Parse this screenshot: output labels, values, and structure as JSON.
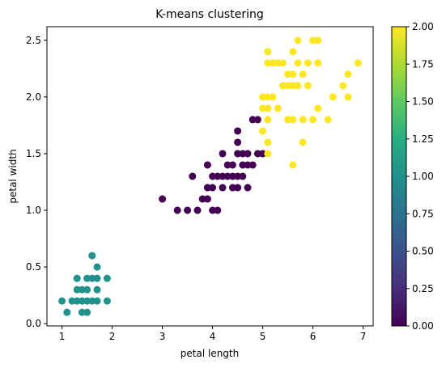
{
  "chart_data": {
    "type": "scatter",
    "title": "K-means clustering",
    "xlabel": "petal length",
    "ylabel": "petal width",
    "xlim": [
      0.7,
      7.2
    ],
    "ylim": [
      -0.02,
      2.62
    ],
    "xticks": [
      "1",
      "2",
      "3",
      "4",
      "5",
      "6",
      "7"
    ],
    "yticks": [
      "0.0",
      "0.5",
      "1.0",
      "1.5",
      "2.0",
      "2.5"
    ],
    "colorbar": {
      "colormap": "viridis",
      "range": [
        0.0,
        2.0
      ],
      "ticks": [
        "0.00",
        "0.25",
        "0.50",
        "0.75",
        "1.00",
        "1.25",
        "1.50",
        "1.75",
        "2.00"
      ]
    },
    "cluster_colors": [
      "#440154",
      "#21918c",
      "#fde725"
    ],
    "grid": false,
    "points": [
      {
        "x": 1.0,
        "y": 0.2,
        "c": 1
      },
      {
        "x": 1.1,
        "y": 0.1,
        "c": 1
      },
      {
        "x": 1.2,
        "y": 0.2,
        "c": 1
      },
      {
        "x": 1.3,
        "y": 0.2,
        "c": 1
      },
      {
        "x": 1.3,
        "y": 0.3,
        "c": 1
      },
      {
        "x": 1.3,
        "y": 0.4,
        "c": 1
      },
      {
        "x": 1.4,
        "y": 0.1,
        "c": 1
      },
      {
        "x": 1.4,
        "y": 0.2,
        "c": 1
      },
      {
        "x": 1.4,
        "y": 0.3,
        "c": 1
      },
      {
        "x": 1.5,
        "y": 0.1,
        "c": 1
      },
      {
        "x": 1.5,
        "y": 0.2,
        "c": 1
      },
      {
        "x": 1.5,
        "y": 0.3,
        "c": 1
      },
      {
        "x": 1.5,
        "y": 0.4,
        "c": 1
      },
      {
        "x": 1.6,
        "y": 0.2,
        "c": 1
      },
      {
        "x": 1.6,
        "y": 0.4,
        "c": 1
      },
      {
        "x": 1.6,
        "y": 0.6,
        "c": 1
      },
      {
        "x": 1.7,
        "y": 0.2,
        "c": 1
      },
      {
        "x": 1.7,
        "y": 0.3,
        "c": 1
      },
      {
        "x": 1.7,
        "y": 0.4,
        "c": 1
      },
      {
        "x": 1.7,
        "y": 0.5,
        "c": 1
      },
      {
        "x": 1.9,
        "y": 0.2,
        "c": 1
      },
      {
        "x": 1.9,
        "y": 0.4,
        "c": 1
      },
      {
        "x": 3.0,
        "y": 1.1,
        "c": 0
      },
      {
        "x": 3.3,
        "y": 1.0,
        "c": 0
      },
      {
        "x": 3.5,
        "y": 1.0,
        "c": 0
      },
      {
        "x": 3.6,
        "y": 1.3,
        "c": 0
      },
      {
        "x": 3.7,
        "y": 1.0,
        "c": 0
      },
      {
        "x": 3.8,
        "y": 1.1,
        "c": 0
      },
      {
        "x": 3.9,
        "y": 1.1,
        "c": 0
      },
      {
        "x": 3.9,
        "y": 1.2,
        "c": 0
      },
      {
        "x": 3.9,
        "y": 1.4,
        "c": 0
      },
      {
        "x": 4.0,
        "y": 1.0,
        "c": 0
      },
      {
        "x": 4.0,
        "y": 1.2,
        "c": 0
      },
      {
        "x": 4.0,
        "y": 1.3,
        "c": 0
      },
      {
        "x": 4.1,
        "y": 1.0,
        "c": 0
      },
      {
        "x": 4.1,
        "y": 1.3,
        "c": 0
      },
      {
        "x": 4.2,
        "y": 1.2,
        "c": 0
      },
      {
        "x": 4.2,
        "y": 1.3,
        "c": 0
      },
      {
        "x": 4.2,
        "y": 1.5,
        "c": 0
      },
      {
        "x": 4.3,
        "y": 1.3,
        "c": 0
      },
      {
        "x": 4.4,
        "y": 1.2,
        "c": 0
      },
      {
        "x": 4.4,
        "y": 1.3,
        "c": 0
      },
      {
        "x": 4.4,
        "y": 1.4,
        "c": 0
      },
      {
        "x": 4.5,
        "y": 1.3,
        "c": 0
      },
      {
        "x": 4.5,
        "y": 1.5,
        "c": 0
      },
      {
        "x": 4.5,
        "y": 1.6,
        "c": 0
      },
      {
        "x": 4.5,
        "y": 1.7,
        "c": 0
      },
      {
        "x": 4.6,
        "y": 1.3,
        "c": 0
      },
      {
        "x": 4.6,
        "y": 1.4,
        "c": 0
      },
      {
        "x": 4.6,
        "y": 1.5,
        "c": 0
      },
      {
        "x": 4.7,
        "y": 1.2,
        "c": 0
      },
      {
        "x": 4.7,
        "y": 1.4,
        "c": 0
      },
      {
        "x": 4.7,
        "y": 1.5,
        "c": 0
      },
      {
        "x": 4.8,
        "y": 1.4,
        "c": 0
      },
      {
        "x": 4.8,
        "y": 1.8,
        "c": 0
      },
      {
        "x": 4.9,
        "y": 1.5,
        "c": 0
      },
      {
        "x": 4.9,
        "y": 1.8,
        "c": 0
      },
      {
        "x": 5.0,
        "y": 1.5,
        "c": 0
      },
      {
        "x": 4.5,
        "y": 1.2,
        "c": 0
      },
      {
        "x": 4.3,
        "y": 1.4,
        "c": 0
      },
      {
        "x": 5.0,
        "y": 1.7,
        "c": 2
      },
      {
        "x": 5.0,
        "y": 2.0,
        "c": 2
      },
      {
        "x": 5.0,
        "y": 1.9,
        "c": 2
      },
      {
        "x": 5.1,
        "y": 1.5,
        "c": 2
      },
      {
        "x": 5.1,
        "y": 1.6,
        "c": 2
      },
      {
        "x": 5.1,
        "y": 1.8,
        "c": 2
      },
      {
        "x": 5.1,
        "y": 1.9,
        "c": 2
      },
      {
        "x": 5.1,
        "y": 2.0,
        "c": 2
      },
      {
        "x": 5.1,
        "y": 2.3,
        "c": 2
      },
      {
        "x": 5.1,
        "y": 2.4,
        "c": 2
      },
      {
        "x": 5.2,
        "y": 2.0,
        "c": 2
      },
      {
        "x": 5.2,
        "y": 2.3,
        "c": 2
      },
      {
        "x": 5.3,
        "y": 1.9,
        "c": 2
      },
      {
        "x": 5.3,
        "y": 2.3,
        "c": 2
      },
      {
        "x": 5.4,
        "y": 2.1,
        "c": 2
      },
      {
        "x": 5.4,
        "y": 2.3,
        "c": 2
      },
      {
        "x": 5.5,
        "y": 1.8,
        "c": 2
      },
      {
        "x": 5.5,
        "y": 2.1,
        "c": 2
      },
      {
        "x": 5.5,
        "y": 2.2,
        "c": 2
      },
      {
        "x": 5.6,
        "y": 1.4,
        "c": 2
      },
      {
        "x": 5.6,
        "y": 1.8,
        "c": 2
      },
      {
        "x": 5.6,
        "y": 2.1,
        "c": 2
      },
      {
        "x": 5.6,
        "y": 2.2,
        "c": 2
      },
      {
        "x": 5.6,
        "y": 2.4,
        "c": 2
      },
      {
        "x": 5.7,
        "y": 2.1,
        "c": 2
      },
      {
        "x": 5.7,
        "y": 2.3,
        "c": 2
      },
      {
        "x": 5.7,
        "y": 2.5,
        "c": 2
      },
      {
        "x": 5.8,
        "y": 1.6,
        "c": 2
      },
      {
        "x": 5.8,
        "y": 1.8,
        "c": 2
      },
      {
        "x": 5.8,
        "y": 2.2,
        "c": 2
      },
      {
        "x": 5.9,
        "y": 2.1,
        "c": 2
      },
      {
        "x": 5.9,
        "y": 2.3,
        "c": 2
      },
      {
        "x": 6.0,
        "y": 1.8,
        "c": 2
      },
      {
        "x": 6.0,
        "y": 2.5,
        "c": 2
      },
      {
        "x": 6.1,
        "y": 1.9,
        "c": 2
      },
      {
        "x": 6.1,
        "y": 2.3,
        "c": 2
      },
      {
        "x": 6.1,
        "y": 2.5,
        "c": 2
      },
      {
        "x": 6.3,
        "y": 1.8,
        "c": 2
      },
      {
        "x": 6.4,
        "y": 2.0,
        "c": 2
      },
      {
        "x": 6.6,
        "y": 2.1,
        "c": 2
      },
      {
        "x": 6.7,
        "y": 2.0,
        "c": 2
      },
      {
        "x": 6.7,
        "y": 2.2,
        "c": 2
      },
      {
        "x": 6.9,
        "y": 2.3,
        "c": 2
      }
    ]
  }
}
